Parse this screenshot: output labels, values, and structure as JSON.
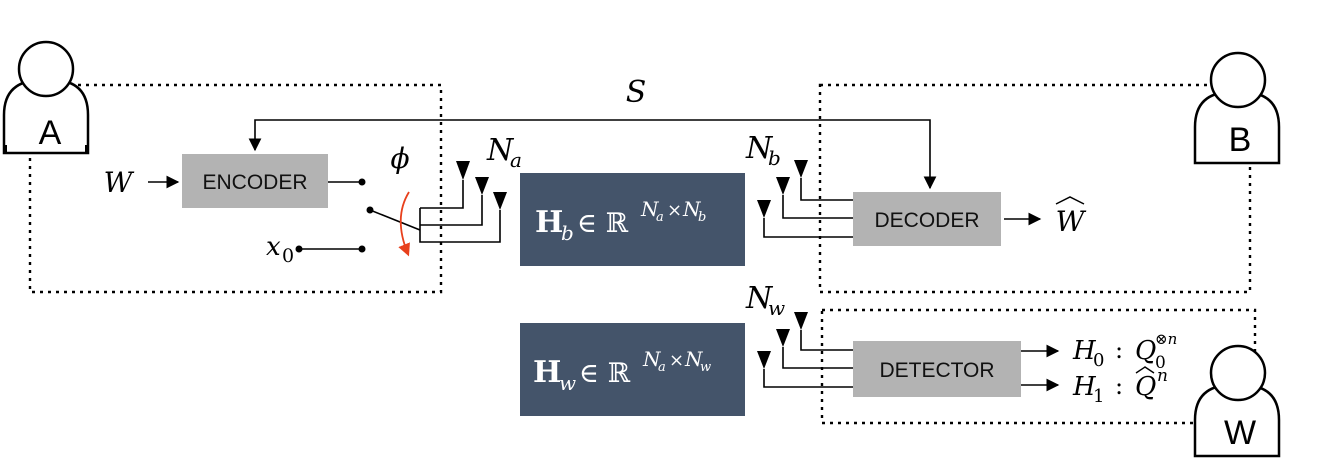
{
  "users": {
    "a_label": "A",
    "b_label": "B",
    "w_label": "W"
  },
  "blocks": {
    "encoder": "ENCODER",
    "decoder": "DECODER",
    "detector": "DETECTOR"
  },
  "symbols": {
    "shared_key": "S",
    "message": "W",
    "message_hat": "W",
    "switch_angle": "ϕ",
    "x0_base": "x",
    "x0_sub": "0",
    "na_base": "N",
    "na_sub": "a",
    "nb_base": "N",
    "nb_sub": "b",
    "nw_base": "N",
    "nw_sub": "w"
  },
  "channels": {
    "hb": {
      "H": "H",
      "sub": "b",
      "in": "∈ ℝ",
      "sup_na": "N",
      "sup_na_sub": "a",
      "times": "×",
      "sup_n2": "N",
      "sup_n2_sub": "b"
    },
    "hw": {
      "H": "H",
      "sub": "w",
      "in": "∈ ℝ",
      "sup_na": "N",
      "sup_na_sub": "a",
      "times": "×",
      "sup_n2": "N",
      "sup_n2_sub": "w"
    }
  },
  "hypotheses": {
    "h0": {
      "H": "H",
      "sub": "0",
      "colon": ":",
      "Q": "Q",
      "Q_sub": "0",
      "Q_sup": "⊗n"
    },
    "h1": {
      "H": "H",
      "sub": "1",
      "colon": ":",
      "Q": "Q",
      "Q_sup": "n"
    }
  },
  "colors": {
    "box_gray": "#b3b3b3",
    "channel_fill": "#44546a",
    "switch_arrow": "#e8401c",
    "line": "#000000"
  }
}
